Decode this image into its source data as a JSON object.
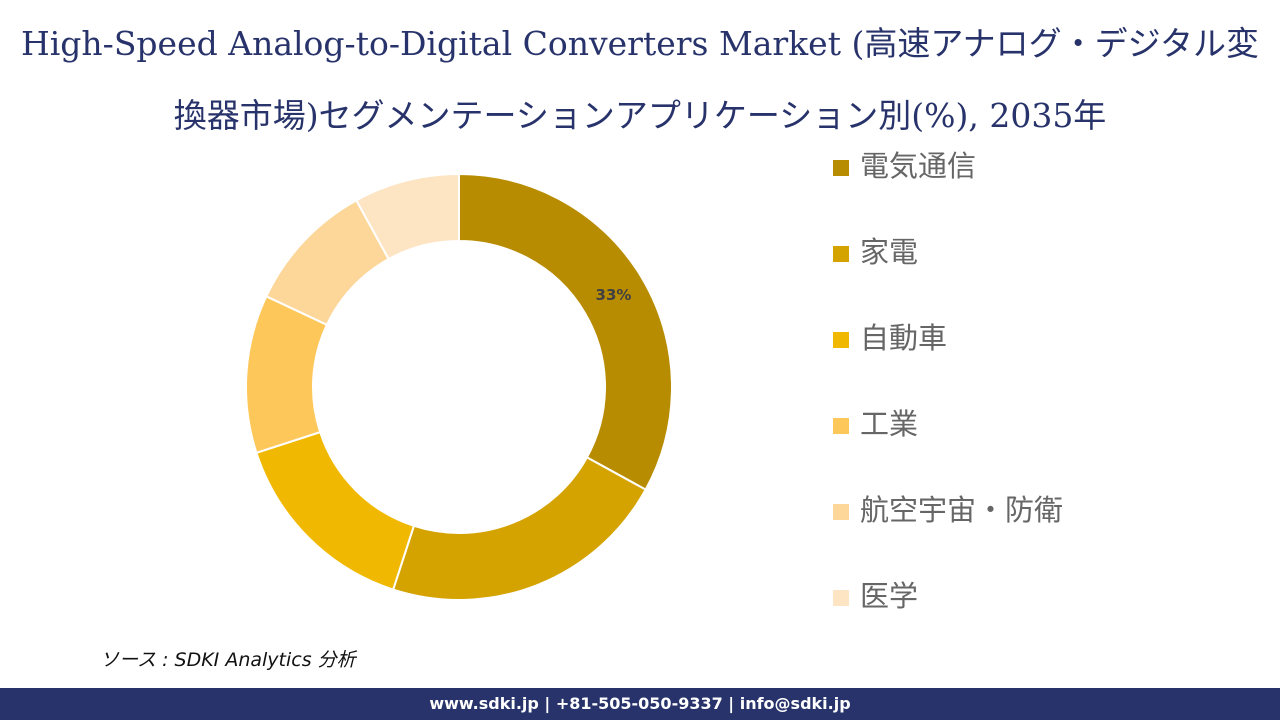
{
  "chart_data": {
    "type": "donut",
    "title": "High-Speed Analog-to-Digital Converters Market (高速アナログ・デジタル変換器市場)セグメンテーションアプリケーション別(%), 2035年",
    "categories": [
      "電気通信",
      "家電",
      "自動車",
      "工業",
      "航空宇宙・防衛",
      "医学"
    ],
    "values": [
      33,
      22,
      15,
      12,
      10,
      8
    ],
    "value_labels": [
      "33%",
      null,
      null,
      null,
      null,
      null
    ],
    "colors": [
      "#b88c00",
      "#d4a300",
      "#f0b800",
      "#fdc75a",
      "#fdd79a",
      "#fde4c3"
    ],
    "legend": "right"
  },
  "source": "ソース : SDKI Analytics 分析",
  "footer": "www.sdki.jp | +81-505-050-9337 | info@sdki.jp"
}
